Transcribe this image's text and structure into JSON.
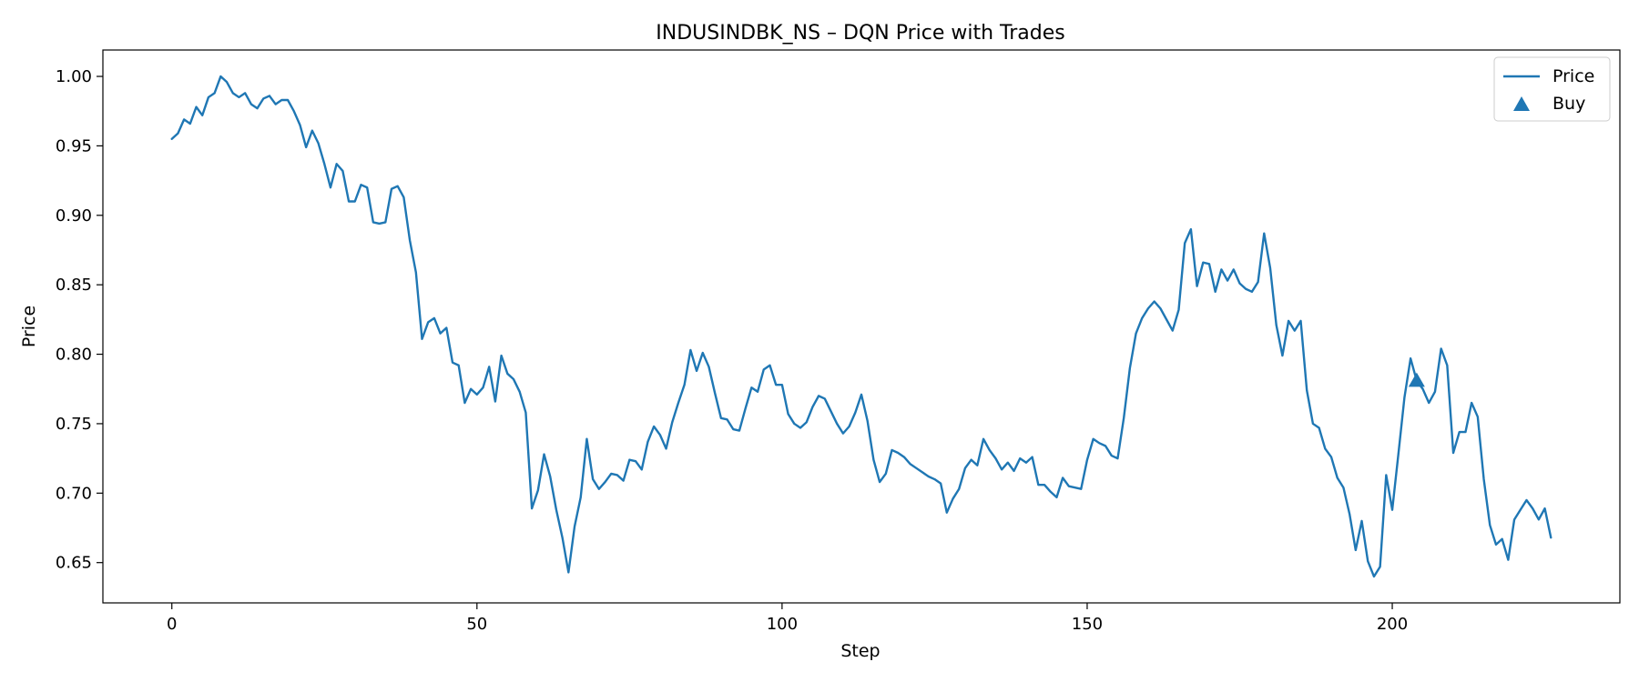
{
  "chart_data": {
    "type": "line",
    "title": "INDUSINDBK_NS – DQN Price with Trades",
    "xlabel": "Step",
    "ylabel": "Price",
    "xlim": [
      -11.3,
      237.3
    ],
    "ylim": [
      0.621,
      1.019
    ],
    "xticks": [
      0,
      50,
      100,
      150,
      200
    ],
    "xtick_labels": [
      "0",
      "50",
      "100",
      "150",
      "200"
    ],
    "yticks": [
      0.65,
      0.7,
      0.75,
      0.8,
      0.85,
      0.9,
      0.95,
      1.0
    ],
    "ytick_labels": [
      "0.65",
      "0.70",
      "0.75",
      "0.80",
      "0.85",
      "0.90",
      "0.95",
      "1.00"
    ],
    "grid": false,
    "legend_position": "top-right",
    "series": [
      {
        "name": "Price",
        "kind": "line",
        "color": "#1f77b4",
        "values": [
          0.955,
          0.959,
          0.969,
          0.966,
          0.978,
          0.972,
          0.985,
          0.988,
          1.0,
          0.996,
          0.988,
          0.985,
          0.988,
          0.98,
          0.977,
          0.984,
          0.986,
          0.98,
          0.983,
          0.983,
          0.975,
          0.965,
          0.949,
          0.961,
          0.952,
          0.937,
          0.92,
          0.937,
          0.932,
          0.91,
          0.91,
          0.922,
          0.92,
          0.895,
          0.894,
          0.895,
          0.919,
          0.921,
          0.913,
          0.882,
          0.859,
          0.811,
          0.823,
          0.826,
          0.815,
          0.819,
          0.794,
          0.792,
          0.765,
          0.775,
          0.771,
          0.776,
          0.791,
          0.766,
          0.799,
          0.786,
          0.782,
          0.773,
          0.758,
          0.689,
          0.702,
          0.728,
          0.712,
          0.688,
          0.668,
          0.643,
          0.676,
          0.697,
          0.739,
          0.71,
          0.703,
          0.708,
          0.714,
          0.713,
          0.709,
          0.724,
          0.723,
          0.717,
          0.737,
          0.748,
          0.742,
          0.732,
          0.751,
          0.765,
          0.778,
          0.803,
          0.788,
          0.801,
          0.791,
          0.772,
          0.754,
          0.753,
          0.746,
          0.745,
          0.761,
          0.776,
          0.773,
          0.789,
          0.792,
          0.778,
          0.778,
          0.757,
          0.75,
          0.747,
          0.751,
          0.762,
          0.77,
          0.768,
          0.759,
          0.75,
          0.743,
          0.748,
          0.758,
          0.771,
          0.752,
          0.724,
          0.708,
          0.714,
          0.731,
          0.729,
          0.726,
          0.721,
          0.718,
          0.715,
          0.712,
          0.71,
          0.707,
          0.686,
          0.696,
          0.703,
          0.718,
          0.724,
          0.72,
          0.739,
          0.731,
          0.725,
          0.717,
          0.722,
          0.716,
          0.725,
          0.722,
          0.726,
          0.706,
          0.706,
          0.701,
          0.697,
          0.711,
          0.705,
          0.704,
          0.703,
          0.724,
          0.739,
          0.736,
          0.734,
          0.727,
          0.725,
          0.754,
          0.79,
          0.815,
          0.826,
          0.833,
          0.838,
          0.833,
          0.825,
          0.817,
          0.832,
          0.88,
          0.89,
          0.849,
          0.866,
          0.865,
          0.845,
          0.861,
          0.853,
          0.861,
          0.851,
          0.847,
          0.845,
          0.852,
          0.887,
          0.862,
          0.821,
          0.799,
          0.824,
          0.817,
          0.824,
          0.774,
          0.75,
          0.747,
          0.732,
          0.726,
          0.711,
          0.704,
          0.685,
          0.659,
          0.68,
          0.651,
          0.64,
          0.647,
          0.713,
          0.688,
          0.728,
          0.769,
          0.797,
          0.781,
          0.775,
          0.765,
          0.773,
          0.804,
          0.792,
          0.729,
          0.744,
          0.744,
          0.765,
          0.755,
          0.71,
          0.677,
          0.663,
          0.667,
          0.652,
          0.681,
          0.688,
          0.695,
          0.689,
          0.681,
          0.689,
          0.668
        ]
      },
      {
        "name": "Buy",
        "kind": "marker",
        "marker": "triangle-up",
        "color": "#1f77b4",
        "x": [
          204
        ],
        "y": [
          0.781
        ]
      }
    ]
  }
}
